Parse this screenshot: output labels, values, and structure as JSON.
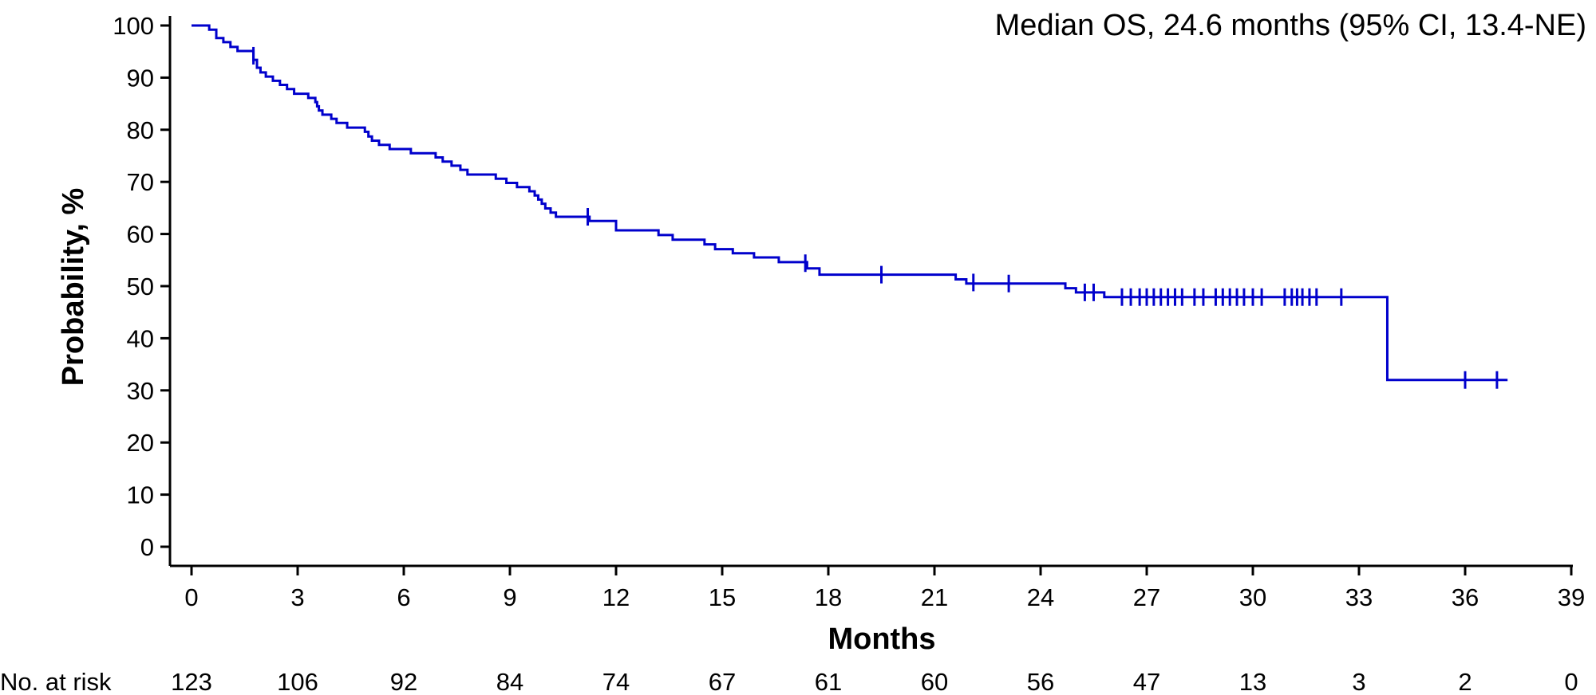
{
  "chart_data": {
    "type": "line",
    "subtype": "kaplan-meier",
    "title": "",
    "annotation": "Median OS, 24.6 months (95% CI, 13.4-NE)",
    "xlabel": "Months",
    "ylabel": "Probability, %",
    "xlim": [
      0,
      39
    ],
    "ylim": [
      0,
      100
    ],
    "x_ticks": [
      0,
      3,
      6,
      9,
      12,
      15,
      18,
      21,
      24,
      27,
      30,
      33,
      36,
      39
    ],
    "x_tick_labels": [
      "0",
      "3",
      "6",
      "9",
      "12",
      "15",
      "18",
      "21",
      "24",
      "27",
      "30",
      "33",
      "36",
      "39"
    ],
    "y_ticks": [
      0,
      10,
      20,
      30,
      40,
      50,
      60,
      70,
      80,
      90,
      100
    ],
    "y_tick_labels": [
      "0",
      "10",
      "20",
      "30",
      "40",
      "50",
      "60",
      "70",
      "80",
      "90",
      "100"
    ],
    "grid": false,
    "color": "#0000cc",
    "series": [
      {
        "steps": [
          [
            0,
            100
          ],
          [
            0.5,
            99.2
          ],
          [
            0.7,
            97.6
          ],
          [
            0.9,
            96.8
          ],
          [
            1.1,
            95.9
          ],
          [
            1.3,
            95.1
          ],
          [
            1.75,
            93.4
          ],
          [
            1.85,
            91.9
          ],
          [
            1.95,
            91.0
          ],
          [
            2.1,
            90.2
          ],
          [
            2.3,
            89.4
          ],
          [
            2.5,
            88.6
          ],
          [
            2.7,
            87.8
          ],
          [
            2.9,
            86.9
          ],
          [
            3.3,
            86.1
          ],
          [
            3.5,
            85.3
          ],
          [
            3.55,
            84.5
          ],
          [
            3.6,
            83.7
          ],
          [
            3.7,
            82.9
          ],
          [
            3.95,
            82.1
          ],
          [
            4.1,
            81.3
          ],
          [
            4.4,
            80.4
          ],
          [
            4.9,
            79.6
          ],
          [
            5.0,
            78.7
          ],
          [
            5.1,
            77.9
          ],
          [
            5.3,
            77.1
          ],
          [
            5.6,
            76.3
          ],
          [
            6.2,
            75.5
          ],
          [
            6.9,
            74.7
          ],
          [
            7.1,
            73.9
          ],
          [
            7.35,
            73.1
          ],
          [
            7.6,
            72.3
          ],
          [
            7.8,
            71.4
          ],
          [
            8.6,
            70.6
          ],
          [
            8.9,
            69.8
          ],
          [
            9.2,
            69.0
          ],
          [
            9.55,
            68.2
          ],
          [
            9.7,
            67.4
          ],
          [
            9.8,
            66.6
          ],
          [
            9.9,
            65.8
          ],
          [
            10.0,
            64.9
          ],
          [
            10.15,
            64.1
          ],
          [
            10.3,
            63.3
          ],
          [
            11.25,
            62.5
          ],
          [
            12.0,
            60.7
          ],
          [
            13.2,
            59.8
          ],
          [
            13.6,
            58.9
          ],
          [
            14.5,
            58.0
          ],
          [
            14.8,
            57.1
          ],
          [
            15.3,
            56.3
          ],
          [
            15.9,
            55.5
          ],
          [
            16.6,
            54.6
          ],
          [
            17.4,
            53.4
          ],
          [
            17.75,
            52.2
          ],
          [
            21.6,
            51.3
          ],
          [
            21.9,
            50.5
          ],
          [
            24.7,
            49.6
          ],
          [
            25.0,
            48.8
          ],
          [
            25.8,
            47.9
          ],
          [
            33.8,
            32.0
          ]
        ],
        "end_x": 37.2,
        "censored": [
          [
            1.75,
            94.2
          ],
          [
            11.2,
            63.3
          ],
          [
            17.35,
            54.4
          ],
          [
            19.5,
            52.2
          ],
          [
            22.1,
            50.7
          ],
          [
            23.1,
            50.5
          ],
          [
            25.25,
            48.8
          ],
          [
            25.5,
            48.8
          ],
          [
            26.3,
            47.9
          ],
          [
            26.55,
            47.9
          ],
          [
            26.8,
            47.9
          ],
          [
            27.0,
            47.9
          ],
          [
            27.2,
            47.9
          ],
          [
            27.4,
            47.9
          ],
          [
            27.6,
            47.9
          ],
          [
            27.8,
            47.9
          ],
          [
            28.0,
            47.9
          ],
          [
            28.35,
            47.9
          ],
          [
            28.6,
            47.9
          ],
          [
            28.95,
            47.9
          ],
          [
            29.15,
            47.9
          ],
          [
            29.35,
            47.9
          ],
          [
            29.55,
            47.9
          ],
          [
            29.75,
            47.9
          ],
          [
            30.0,
            47.9
          ],
          [
            30.25,
            47.9
          ],
          [
            30.9,
            47.9
          ],
          [
            31.1,
            47.9
          ],
          [
            31.25,
            47.9
          ],
          [
            31.4,
            47.9
          ],
          [
            31.6,
            47.9
          ],
          [
            31.8,
            47.9
          ],
          [
            32.5,
            47.9
          ],
          [
            36.0,
            32.0
          ],
          [
            36.9,
            32.0
          ]
        ]
      }
    ],
    "risk_table": {
      "label": "No. at risk",
      "times": [
        0,
        3,
        6,
        9,
        12,
        15,
        18,
        21,
        24,
        27,
        30,
        33,
        36,
        39
      ],
      "counts": [
        "123",
        "106",
        "92",
        "84",
        "74",
        "67",
        "61",
        "60",
        "56",
        "47",
        "13",
        "3",
        "2",
        "0"
      ]
    }
  }
}
